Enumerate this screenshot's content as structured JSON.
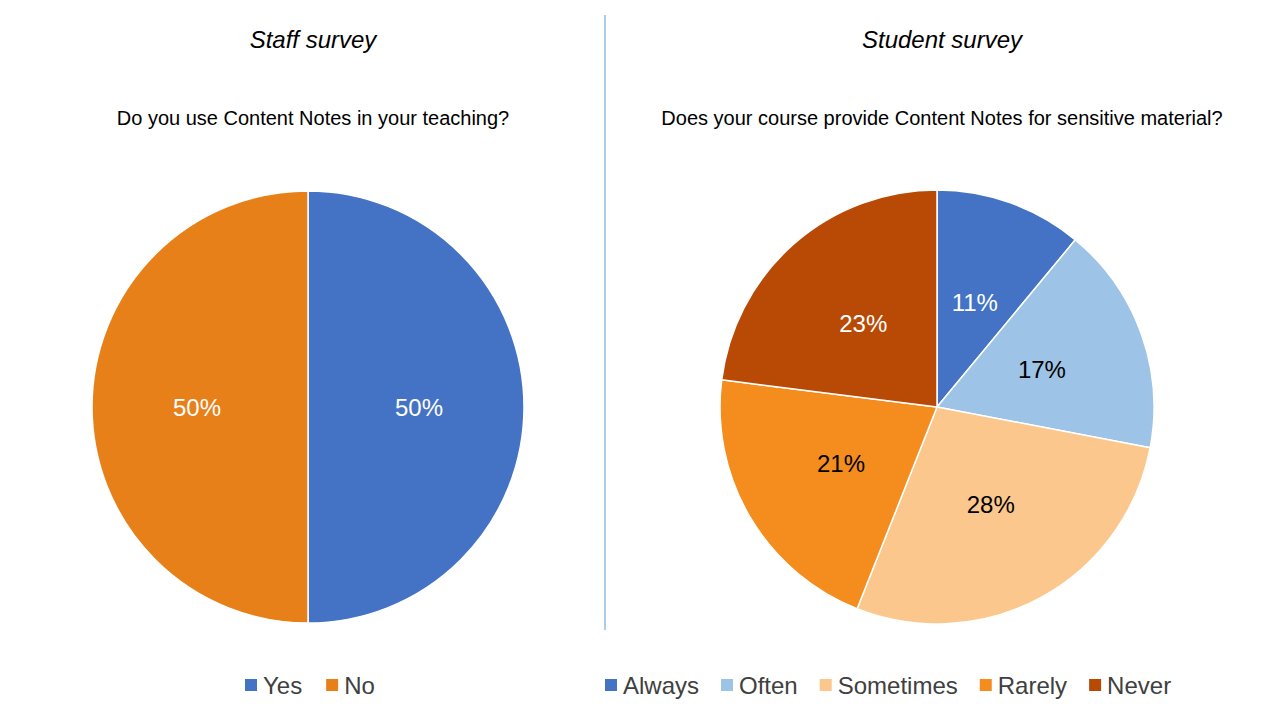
{
  "chart_data": [
    {
      "type": "pie",
      "title": "Staff survey",
      "subtitle": "Do you use Content Notes in your teaching?",
      "categories": [
        "Yes",
        "No"
      ],
      "values": [
        50,
        50
      ],
      "value_labels": [
        "50%",
        "50%"
      ],
      "colors": [
        "#4472c4",
        "#e8801a"
      ],
      "data_labels": true,
      "legend": "bottom"
    },
    {
      "type": "pie",
      "title": "Student survey",
      "subtitle": "Does your course provide Content Notes for sensitive material?",
      "categories": [
        "Always",
        "Often",
        "Sometimes",
        "Rarely",
        "Never"
      ],
      "values": [
        11,
        17,
        28,
        21,
        23
      ],
      "value_labels": [
        "11%",
        "17%",
        "28%",
        "21%",
        "23%"
      ],
      "colors": [
        "#4472c4",
        "#9dc3e6",
        "#fbc78d",
        "#f58d1e",
        "#b84a06"
      ],
      "data_labels": true,
      "legend": "bottom"
    }
  ]
}
